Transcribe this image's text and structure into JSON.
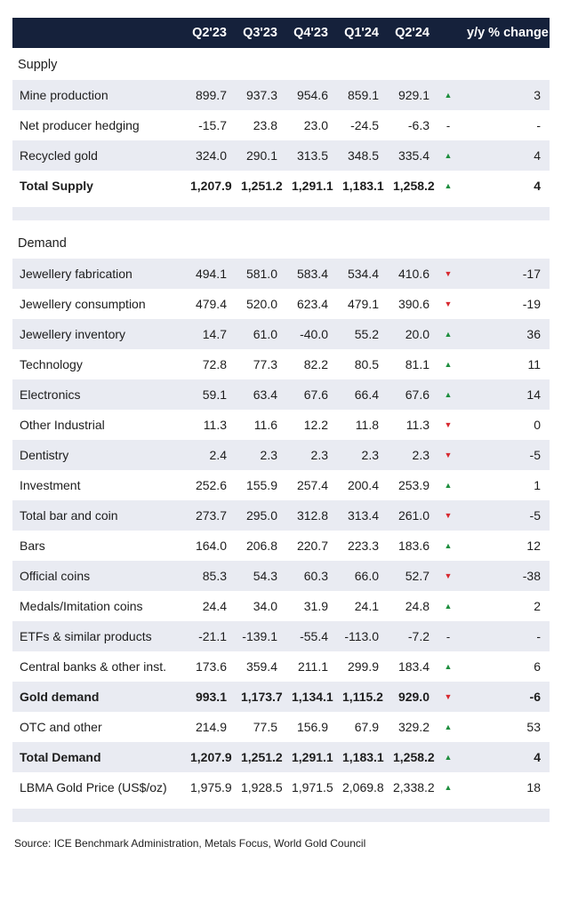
{
  "source": "Source: ICE Benchmark Administration, Metals Focus, World Gold Council",
  "colors": {
    "header_bg": "#15213b",
    "row_shade": "#e9ebf2",
    "trend_up": "#1e8e3e",
    "trend_down": "#d7282f"
  },
  "chart_data": {
    "type": "table",
    "columns": [
      "",
      "Q2'23",
      "Q3'23",
      "Q4'23",
      "Q1'24",
      "Q2'24",
      "trend",
      "y/y % change"
    ],
    "sections": [
      {
        "title": "Supply",
        "rows": [
          {
            "label": "Mine production",
            "values": [
              "899.7",
              "937.3",
              "954.6",
              "859.1",
              "929.1"
            ],
            "trend": "up",
            "yoy": "3",
            "bold": false,
            "shaded": true
          },
          {
            "label": "Net producer hedging",
            "values": [
              "-15.7",
              "23.8",
              "23.0",
              "-24.5",
              "-6.3"
            ],
            "trend": "dash",
            "yoy": "-",
            "bold": false,
            "shaded": false
          },
          {
            "label": "Recycled gold",
            "values": [
              "324.0",
              "290.1",
              "313.5",
              "348.5",
              "335.4"
            ],
            "trend": "up",
            "yoy": "4",
            "bold": false,
            "shaded": true
          },
          {
            "label": "Total Supply",
            "values": [
              "1,207.9",
              "1,251.2",
              "1,291.1",
              "1,183.1",
              "1,258.2"
            ],
            "trend": "up",
            "yoy": "4",
            "bold": true,
            "shaded": false
          }
        ]
      },
      {
        "title": "Demand",
        "rows": [
          {
            "label": "Jewellery fabrication",
            "values": [
              "494.1",
              "581.0",
              "583.4",
              "534.4",
              "410.6"
            ],
            "trend": "down",
            "yoy": "-17",
            "bold": false,
            "shaded": true
          },
          {
            "label": "Jewellery consumption",
            "values": [
              "479.4",
              "520.0",
              "623.4",
              "479.1",
              "390.6"
            ],
            "trend": "down",
            "yoy": "-19",
            "bold": false,
            "shaded": false
          },
          {
            "label": "Jewellery inventory",
            "values": [
              "14.7",
              "61.0",
              "-40.0",
              "55.2",
              "20.0"
            ],
            "trend": "up",
            "yoy": "36",
            "bold": false,
            "shaded": true
          },
          {
            "label": "Technology",
            "values": [
              "72.8",
              "77.3",
              "82.2",
              "80.5",
              "81.1"
            ],
            "trend": "up",
            "yoy": "11",
            "bold": false,
            "shaded": false
          },
          {
            "label": "Electronics",
            "values": [
              "59.1",
              "63.4",
              "67.6",
              "66.4",
              "67.6"
            ],
            "trend": "up",
            "yoy": "14",
            "bold": false,
            "shaded": true
          },
          {
            "label": "Other Industrial",
            "values": [
              "11.3",
              "11.6",
              "12.2",
              "11.8",
              "11.3"
            ],
            "trend": "down",
            "yoy": "0",
            "bold": false,
            "shaded": false
          },
          {
            "label": "Dentistry",
            "values": [
              "2.4",
              "2.3",
              "2.3",
              "2.3",
              "2.3"
            ],
            "trend": "down",
            "yoy": "-5",
            "bold": false,
            "shaded": true
          },
          {
            "label": "Investment",
            "values": [
              "252.6",
              "155.9",
              "257.4",
              "200.4",
              "253.9"
            ],
            "trend": "up",
            "yoy": "1",
            "bold": false,
            "shaded": false
          },
          {
            "label": "Total bar and coin",
            "values": [
              "273.7",
              "295.0",
              "312.8",
              "313.4",
              "261.0"
            ],
            "trend": "down",
            "yoy": "-5",
            "bold": false,
            "shaded": true
          },
          {
            "label": "Bars",
            "values": [
              "164.0",
              "206.8",
              "220.7",
              "223.3",
              "183.6"
            ],
            "trend": "up",
            "yoy": "12",
            "bold": false,
            "shaded": false
          },
          {
            "label": "Official coins",
            "values": [
              "85.3",
              "54.3",
              "60.3",
              "66.0",
              "52.7"
            ],
            "trend": "down",
            "yoy": "-38",
            "bold": false,
            "shaded": true
          },
          {
            "label": "Medals/Imitation coins",
            "values": [
              "24.4",
              "34.0",
              "31.9",
              "24.1",
              "24.8"
            ],
            "trend": "up",
            "yoy": "2",
            "bold": false,
            "shaded": false
          },
          {
            "label": "ETFs & similar products",
            "values": [
              "-21.1",
              "-139.1",
              "-55.4",
              "-113.0",
              "-7.2"
            ],
            "trend": "dash",
            "yoy": "-",
            "bold": false,
            "shaded": true
          },
          {
            "label": "Central banks & other inst.",
            "values": [
              "173.6",
              "359.4",
              "211.1",
              "299.9",
              "183.4"
            ],
            "trend": "up",
            "yoy": "6",
            "bold": false,
            "shaded": false
          },
          {
            "label": "Gold demand",
            "values": [
              "993.1",
              "1,173.7",
              "1,134.1",
              "1,115.2",
              "929.0"
            ],
            "trend": "down",
            "yoy": "-6",
            "bold": true,
            "shaded": true
          },
          {
            "label": "OTC and other",
            "values": [
              "214.9",
              "77.5",
              "156.9",
              "67.9",
              "329.2"
            ],
            "trend": "up",
            "yoy": "53",
            "bold": false,
            "shaded": false
          },
          {
            "label": "Total Demand",
            "values": [
              "1,207.9",
              "1,251.2",
              "1,291.1",
              "1,183.1",
              "1,258.2"
            ],
            "trend": "up",
            "yoy": "4",
            "bold": true,
            "shaded": true
          },
          {
            "label": "LBMA Gold Price (US$/oz)",
            "values": [
              "1,975.9",
              "1,928.5",
              "1,971.5",
              "2,069.8",
              "2,338.2"
            ],
            "trend": "up",
            "yoy": "18",
            "bold": false,
            "shaded": false
          }
        ]
      }
    ]
  }
}
